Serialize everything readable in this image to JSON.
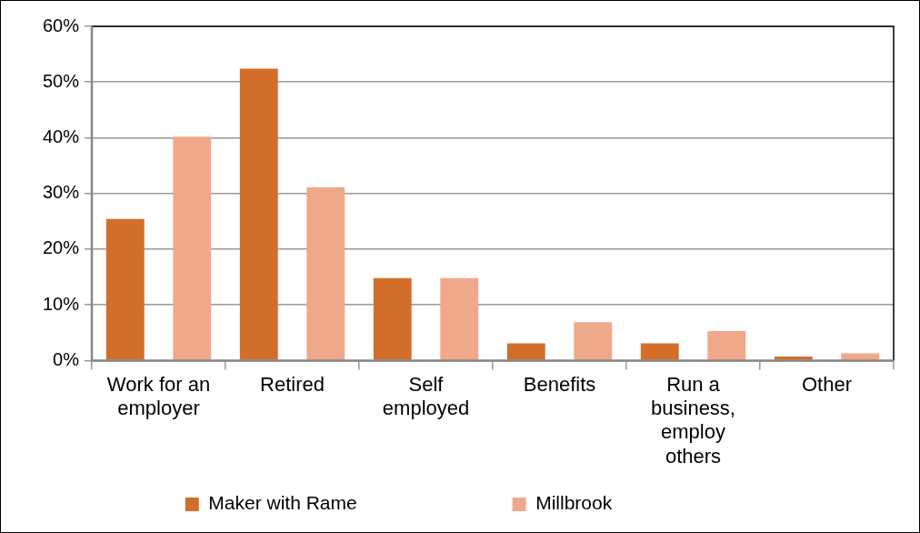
{
  "chart_data": {
    "type": "bar",
    "categories": [
      "Work for an employer",
      "Retired",
      "Self employed",
      "Benefits",
      "Run a business, employ others",
      "Other"
    ],
    "series": [
      {
        "name": "Maker with Rame",
        "color": "#d26e2a",
        "values": [
          25.4,
          52.4,
          14.8,
          3.1,
          3.1,
          0.7
        ]
      },
      {
        "name": "Millbrook",
        "color": "#f0a88a",
        "values": [
          40.2,
          31.1,
          14.8,
          6.9,
          5.3,
          1.3
        ]
      }
    ],
    "ylim": [
      0,
      60
    ],
    "yticks": [
      {
        "value": 0,
        "label": "0%"
      },
      {
        "value": 10,
        "label": "10%"
      },
      {
        "value": 20,
        "label": "20%"
      },
      {
        "value": 30,
        "label": "30%"
      },
      {
        "value": 40,
        "label": "40%"
      },
      {
        "value": 50,
        "label": "50%"
      },
      {
        "value": 60,
        "label": "60%"
      }
    ],
    "grid": "y",
    "legend": "bottom"
  }
}
